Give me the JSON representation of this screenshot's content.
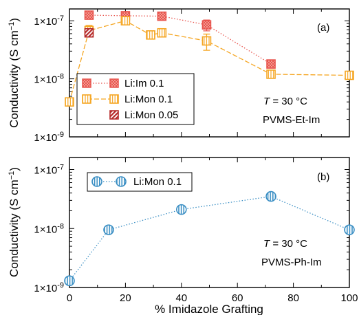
{
  "chart_data": [
    {
      "type": "line",
      "panel_label": "(a)",
      "ylabel": "Conductivity (S cm",
      "ylabel_superscript": "−1",
      "ylabel_close": ")",
      "yscale": "log",
      "xlim": [
        0,
        100
      ],
      "ylim": [
        1e-09,
        1.6e-07
      ],
      "yticks": [
        1e-09,
        1e-08,
        1e-07
      ],
      "ytick_labels": [
        "1×10",
        "1×10",
        "1×10"
      ],
      "ytick_exponents": [
        "-9",
        "-8",
        "-7"
      ],
      "legend_position": "bottom-left",
      "annotations": {
        "temp_italic": "T",
        "temp_rest": " = 30 °C",
        "material": "PVMS-Et-Im"
      },
      "series": [
        {
          "name": "Li:Im 0.1",
          "color": "#e8554e",
          "marker": "square-checker",
          "linestyle": "dotted",
          "x": [
            7,
            20,
            33,
            49,
            72
          ],
          "y": [
            1.25e-07,
            1.22e-07,
            1.2e-07,
            8.5e-08,
            1.8e-08
          ],
          "yerr": [
            null,
            null,
            null,
            1.8e-08,
            null
          ]
        },
        {
          "name": "Li:Mon 0.1",
          "color": "#f5a623",
          "marker": "square-open",
          "linestyle": "dashed",
          "x": [
            0,
            7,
            20,
            29,
            33,
            49,
            72,
            100
          ],
          "y": [
            4e-09,
            6.8e-08,
            1e-07,
            5.7e-08,
            6.2e-08,
            4.5e-08,
            1.2e-08,
            1.15e-08
          ],
          "yerr": [
            null,
            1.5e-08,
            null,
            null,
            null,
            1.4e-08,
            null,
            null
          ]
        },
        {
          "name": "Li:Mon 0.05",
          "color": "#b52a2a",
          "marker": "square-hatched",
          "linestyle": "none",
          "x": [
            7
          ],
          "y": [
            6.2e-08
          ],
          "yerr": [
            null
          ]
        }
      ]
    },
    {
      "type": "line",
      "panel_label": "(b)",
      "xlabel": "% Imidazole Grafting",
      "ylabel": "Conductivity (S cm",
      "ylabel_superscript": "−1",
      "ylabel_close": ")",
      "yscale": "log",
      "xlim": [
        0,
        100
      ],
      "xticks": [
        0,
        20,
        40,
        60,
        80,
        100
      ],
      "xtick_labels": [
        "0",
        "20",
        "40",
        "60",
        "80",
        "100"
      ],
      "ylim": [
        1e-09,
        1.6e-07
      ],
      "yticks": [
        1e-09,
        1e-08,
        1e-07
      ],
      "ytick_labels": [
        "1×10",
        "1×10",
        "1×10"
      ],
      "ytick_exponents": [
        "-9",
        "-8",
        "-7"
      ],
      "legend_position": "top-left",
      "annotations": {
        "temp_italic": "T",
        "temp_rest": " = 30 °C",
        "material": "PVMS-Ph-Im"
      },
      "series": [
        {
          "name": "Li:Mon 0.1",
          "color": "#3b8fc4",
          "marker": "circle-striped",
          "linestyle": "dotted",
          "x": [
            0,
            14,
            40,
            72,
            100
          ],
          "y": [
            1.3e-09,
            9.5e-09,
            2.1e-08,
            3.5e-08,
            9.5e-09
          ],
          "yerr": [
            null,
            null,
            null,
            null,
            null
          ]
        }
      ]
    }
  ]
}
